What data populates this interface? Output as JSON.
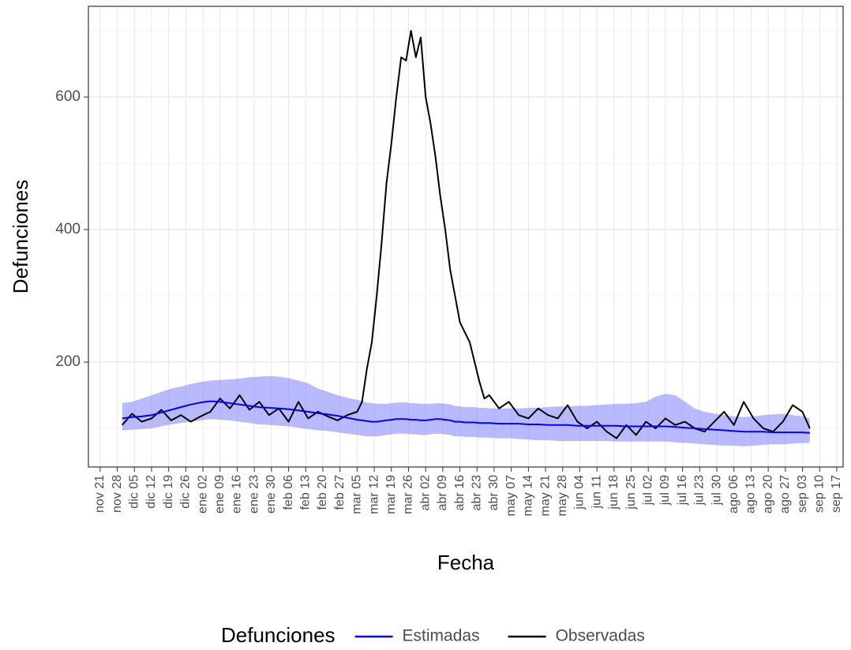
{
  "chart_data": {
    "type": "line",
    "x_label": "Fecha",
    "y_label": "Defunciones",
    "xlim": [
      -4.8,
      303.6
    ],
    "ylim": [
      41.7,
      736.9
    ],
    "xticks": [
      {
        "value": 0,
        "label": "nov 21"
      },
      {
        "value": 7,
        "label": "nov 28"
      },
      {
        "value": 14,
        "label": "dic 05"
      },
      {
        "value": 21,
        "label": "dic 12"
      },
      {
        "value": 28,
        "label": "dic 19"
      },
      {
        "value": 35,
        "label": "dic 26"
      },
      {
        "value": 42,
        "label": "ene 02"
      },
      {
        "value": 49,
        "label": "ene 09"
      },
      {
        "value": 56,
        "label": "ene 16"
      },
      {
        "value": 63,
        "label": "ene 23"
      },
      {
        "value": 70,
        "label": "ene 30"
      },
      {
        "value": 77,
        "label": "feb 06"
      },
      {
        "value": 84,
        "label": "feb 13"
      },
      {
        "value": 91,
        "label": "feb 20"
      },
      {
        "value": 98,
        "label": "feb 27"
      },
      {
        "value": 105,
        "label": "mar 05"
      },
      {
        "value": 112,
        "label": "mar 12"
      },
      {
        "value": 119,
        "label": "mar 19"
      },
      {
        "value": 126,
        "label": "mar 26"
      },
      {
        "value": 133,
        "label": "abr 02"
      },
      {
        "value": 140,
        "label": "abr 09"
      },
      {
        "value": 147,
        "label": "abr 16"
      },
      {
        "value": 154,
        "label": "abr 23"
      },
      {
        "value": 161,
        "label": "abr 30"
      },
      {
        "value": 168,
        "label": "may 07"
      },
      {
        "value": 175,
        "label": "may 14"
      },
      {
        "value": 182,
        "label": "may 21"
      },
      {
        "value": 189,
        "label": "may 28"
      },
      {
        "value": 196,
        "label": "jun 04"
      },
      {
        "value": 203,
        "label": "jun 11"
      },
      {
        "value": 210,
        "label": "jun 18"
      },
      {
        "value": 217,
        "label": "jun 25"
      },
      {
        "value": 224,
        "label": "jul 02"
      },
      {
        "value": 231,
        "label": "jul 09"
      },
      {
        "value": 238,
        "label": "jul 16"
      },
      {
        "value": 245,
        "label": "jul 23"
      },
      {
        "value": 252,
        "label": "jul 30"
      },
      {
        "value": 259,
        "label": "ago 06"
      },
      {
        "value": 266,
        "label": "ago 13"
      },
      {
        "value": 273,
        "label": "ago 20"
      },
      {
        "value": 280,
        "label": "ago 27"
      },
      {
        "value": 287,
        "label": "sep 03"
      },
      {
        "value": 294,
        "label": "sep 10"
      },
      {
        "value": 301,
        "label": "sep 17"
      }
    ],
    "yticks": [
      200,
      400,
      600
    ],
    "yminor": [
      100,
      300,
      500,
      700
    ],
    "grid": true,
    "legend": {
      "title": "Defunciones",
      "position": "bottom"
    },
    "x": [
      9,
      13,
      17,
      21,
      25,
      29,
      33,
      37,
      41,
      45,
      49,
      53,
      57,
      61,
      65,
      69,
      73,
      77,
      81,
      85,
      89,
      93,
      97,
      101,
      105,
      107,
      109,
      111,
      113,
      115,
      117,
      119,
      121,
      123,
      125,
      127,
      129,
      131,
      133,
      135,
      137,
      139,
      141,
      143,
      145,
      147,
      149,
      151,
      153,
      155,
      157,
      159,
      163,
      167,
      171,
      175,
      179,
      183,
      187,
      191,
      195,
      199,
      203,
      207,
      211,
      215,
      219,
      223,
      227,
      231,
      235,
      239,
      243,
      247,
      251,
      255,
      259,
      263,
      267,
      271,
      275,
      279,
      283,
      287,
      290
    ],
    "series": [
      {
        "name": "Estimadas",
        "color": "#0000ff",
        "band_color": "#8080ff",
        "values": [
          115,
          117,
          118,
          120,
          124,
          128,
          132,
          136,
          139,
          141,
          140,
          138,
          136,
          134,
          132,
          131,
          130,
          129,
          127,
          125,
          123,
          121,
          119,
          116,
          113,
          112,
          111,
          110,
          110,
          111,
          112,
          113,
          114,
          114,
          114,
          113,
          113,
          112,
          112,
          113,
          114,
          114,
          113,
          112,
          110,
          110,
          109,
          109,
          109,
          108,
          108,
          108,
          107,
          107,
          107,
          106,
          106,
          105,
          105,
          105,
          104,
          104,
          104,
          104,
          104,
          103,
          103,
          103,
          103,
          103,
          102,
          101,
          100,
          99,
          98,
          97,
          96,
          95,
          95,
          95,
          94,
          94,
          94,
          94,
          93
        ],
        "lower": [
          97,
          98,
          99,
          100,
          103,
          106,
          108,
          110,
          112,
          114,
          113,
          112,
          110,
          108,
          106,
          105,
          104,
          103,
          101,
          99,
          97,
          96,
          94,
          92,
          90,
          89,
          88,
          88,
          88,
          89,
          90,
          91,
          92,
          92,
          92,
          91,
          91,
          90,
          90,
          91,
          92,
          92,
          91,
          90,
          88,
          88,
          87,
          87,
          87,
          86,
          86,
          86,
          85,
          85,
          84,
          83,
          82,
          82,
          81,
          81,
          81,
          81,
          81,
          81,
          80,
          80,
          80,
          80,
          80,
          80,
          79,
          78,
          77,
          76,
          75,
          74,
          74,
          73,
          74,
          75,
          76,
          76,
          77,
          78,
          78
        ],
        "upper": [
          138,
          140,
          145,
          150,
          155,
          160,
          163,
          167,
          170,
          172,
          173,
          174,
          175,
          177,
          178,
          179,
          178,
          176,
          172,
          168,
          160,
          155,
          150,
          146,
          143,
          141,
          139,
          138,
          137,
          137,
          137,
          138,
          139,
          139,
          139,
          138,
          138,
          137,
          137,
          137,
          138,
          138,
          137,
          136,
          134,
          133,
          132,
          132,
          132,
          131,
          131,
          130,
          130,
          130,
          130,
          131,
          131,
          132,
          133,
          133,
          134,
          134,
          135,
          136,
          137,
          137,
          138,
          140,
          148,
          152,
          150,
          140,
          130,
          125,
          122,
          120,
          118,
          117,
          118,
          120,
          121,
          122,
          120,
          118,
          115
        ]
      },
      {
        "name": "Observadas",
        "color": "#000000",
        "values": [
          105,
          122,
          110,
          115,
          128,
          112,
          120,
          110,
          118,
          125,
          145,
          130,
          150,
          128,
          140,
          120,
          130,
          110,
          140,
          115,
          125,
          118,
          112,
          120,
          125,
          140,
          190,
          230,
          300,
          380,
          470,
          530,
          600,
          660,
          655,
          700,
          660,
          690,
          600,
          560,
          510,
          450,
          400,
          340,
          300,
          260,
          245,
          230,
          200,
          170,
          145,
          150,
          130,
          140,
          120,
          115,
          130,
          120,
          115,
          135,
          110,
          100,
          110,
          95,
          85,
          105,
          90,
          110,
          100,
          115,
          105,
          110,
          100,
          95,
          110,
          125,
          105,
          140,
          115,
          100,
          95,
          110,
          135,
          125,
          100
        ]
      }
    ]
  }
}
